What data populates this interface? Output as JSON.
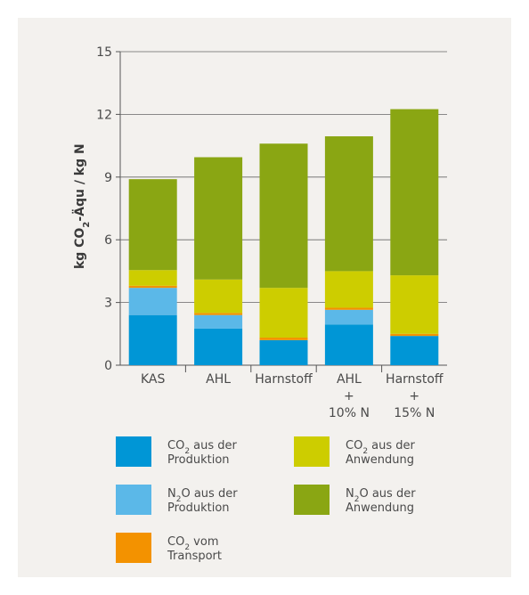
{
  "chart_data": {
    "type": "bar",
    "stacked": true,
    "ylabel": {
      "pre": "kg CO",
      "sub": "2",
      "post": "-Äqu / kg N"
    },
    "ylim": [
      0,
      15
    ],
    "yticks": [
      0,
      3,
      6,
      9,
      12,
      15
    ],
    "categories": [
      [
        "KAS"
      ],
      [
        "AHL"
      ],
      [
        "Harnstoff"
      ],
      [
        "AHL",
        "+",
        "10% N"
      ],
      [
        "Harnstoff",
        "+",
        "15% N"
      ]
    ],
    "series": [
      {
        "id": "co2_prod",
        "color": "#0096d6",
        "label": {
          "pre": "CO",
          "sub": "2",
          "post": " aus der",
          "line2": "Produktion"
        },
        "values": [
          2.4,
          1.75,
          1.2,
          1.95,
          1.4
        ]
      },
      {
        "id": "n2o_prod",
        "color": "#5bb8e8",
        "label": {
          "pre": "N",
          "sub": "2",
          "post": "O aus der",
          "line2": "Produktion"
        },
        "values": [
          1.3,
          0.65,
          0.0,
          0.7,
          0.0
        ]
      },
      {
        "id": "co2_transport",
        "color": "#f39200",
        "label": {
          "pre": "CO",
          "sub": "2",
          "post": " vom",
          "line2": "Transport"
        },
        "values": [
          0.1,
          0.1,
          0.12,
          0.1,
          0.1
        ]
      },
      {
        "id": "co2_anw",
        "color": "#cdcd00",
        "label": {
          "pre": "CO",
          "sub": "2",
          "post": " aus der",
          "line2": "Anwendung"
        },
        "values": [
          0.75,
          1.6,
          2.38,
          1.75,
          2.8
        ]
      },
      {
        "id": "n2o_anw",
        "color": "#8aa613",
        "label": {
          "pre": "N",
          "sub": "2",
          "post": "O aus der",
          "line2": "Anwendung"
        },
        "values": [
          4.35,
          5.85,
          6.9,
          6.45,
          7.95
        ]
      }
    ],
    "legend": {
      "placement": "bottom",
      "order": [
        "co2_prod",
        "co2_anw",
        "n2o_prod",
        "n2o_anw",
        "co2_transport"
      ]
    },
    "grid": false
  }
}
